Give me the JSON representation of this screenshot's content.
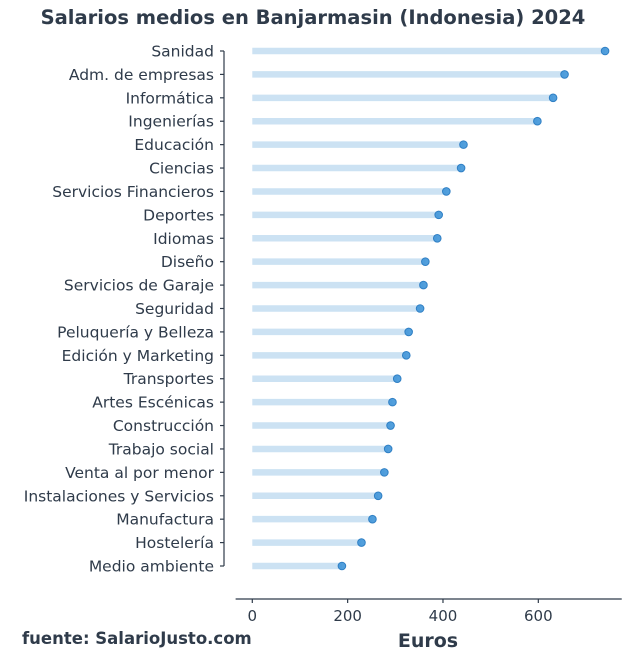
{
  "chart_data": {
    "type": "lollipop",
    "title": "Salarios medios en Banjarmasin (Indonesia) 2024",
    "xlabel": "Euros",
    "ylabel": "",
    "xlim": [
      -35,
      775
    ],
    "xticks": [
      0,
      200,
      400,
      600
    ],
    "grid": false,
    "legend": "none",
    "categories": [
      "Sanidad",
      "Adm. de empresas",
      "Informática",
      "Ingenierías",
      "Educación",
      "Ciencias",
      "Servicios Financieros",
      "Deportes",
      "Idiomas",
      "Diseño",
      "Servicios de Garaje",
      "Seguridad",
      "Peluquería y Belleza",
      "Edición y Marketing",
      "Transportes",
      "Artes Escénicas",
      "Construcción",
      "Trabajo social",
      "Venta al por menor",
      "Instalaciones y Servicios",
      "Manufactura",
      "Hostelería",
      "Medio ambiente"
    ],
    "values": [
      740,
      655,
      631,
      598,
      443,
      438,
      407,
      391,
      388,
      363,
      359,
      352,
      328,
      323,
      304,
      294,
      290,
      285,
      277,
      264,
      252,
      229,
      188
    ],
    "colors": {
      "stem": "#cce2f3",
      "dot": "#3f95d8",
      "dot_edge": "#2f7fc4",
      "axis": "#2f3b4a"
    }
  },
  "source": "fuente: SalarioJusto.com"
}
